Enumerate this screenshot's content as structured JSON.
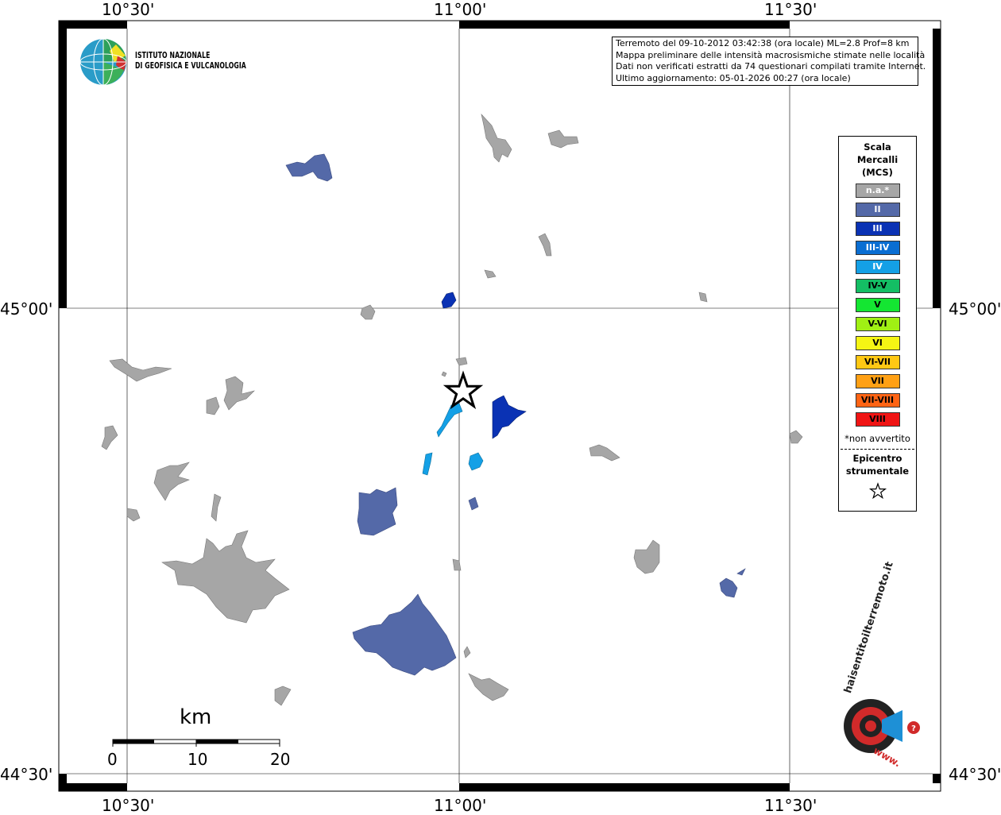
{
  "lon_labels": [
    "10°30'",
    "11°00'",
    "11°30'"
  ],
  "lat_labels": [
    "45°00'",
    "44°30'"
  ],
  "info": {
    "line1": "Terremoto del 09-10-2012 03:42:38 (ora locale) ML=2.8 Prof=8 km",
    "line2": "Mappa preliminare delle intensità macrosismiche stimate nelle località",
    "line3": "Dati non verificati estratti da 74 questionari compilati tramite Internet.",
    "line4": "Ultimo aggiornamento: 05-01-2026 00:27 (ora locale)"
  },
  "ingv": {
    "line1": "ISTITUTO NAZIONALE",
    "line2": "DI GEOFISICA E VULCANOLOGIA"
  },
  "legend": {
    "title1": "Scala",
    "title2": "Mercalli",
    "title3": "(MCS)",
    "classes": [
      {
        "label": "n.a.*",
        "color": "#a6a6a6",
        "text_color": "#ffffff"
      },
      {
        "label": "II",
        "color": "#5469a8",
        "text_color": "#ffffff"
      },
      {
        "label": "III",
        "color": "#0a32b4",
        "text_color": "#ffffff"
      },
      {
        "label": "III-IV",
        "color": "#0a6ed2",
        "text_color": "#ffffff"
      },
      {
        "label": "IV",
        "color": "#14a0e6",
        "text_color": "#ffffff"
      },
      {
        "label": "IV-V",
        "color": "#14be64",
        "text_color": "#000000"
      },
      {
        "label": "V",
        "color": "#14e632",
        "text_color": "#000000"
      },
      {
        "label": "V-VI",
        "color": "#a0f014",
        "text_color": "#000000"
      },
      {
        "label": "VI",
        "color": "#f5f514",
        "text_color": "#000000"
      },
      {
        "label": "VI-VII",
        "color": "#ffc814",
        "text_color": "#000000"
      },
      {
        "label": "VII",
        "color": "#ffa014",
        "text_color": "#000000"
      },
      {
        "label": "VII-VIII",
        "color": "#ff6414",
        "text_color": "#000000"
      },
      {
        "label": "VIII",
        "color": "#f01414",
        "text_color": "#000000"
      }
    ],
    "note": "*non avvertito",
    "epicenter1": "Epicentro",
    "epicenter2": "strumentale"
  },
  "scale_bar": {
    "unit": "km",
    "labels": [
      "0",
      "10",
      "20"
    ]
  },
  "haisentito": {
    "text": "haisentitoilterremoto.it",
    "url_text": "www."
  },
  "colors": {
    "na": "#a6a6a6",
    "ii": "#5469a8",
    "iii": "#0a32b4",
    "iv": "#14a0e6"
  }
}
